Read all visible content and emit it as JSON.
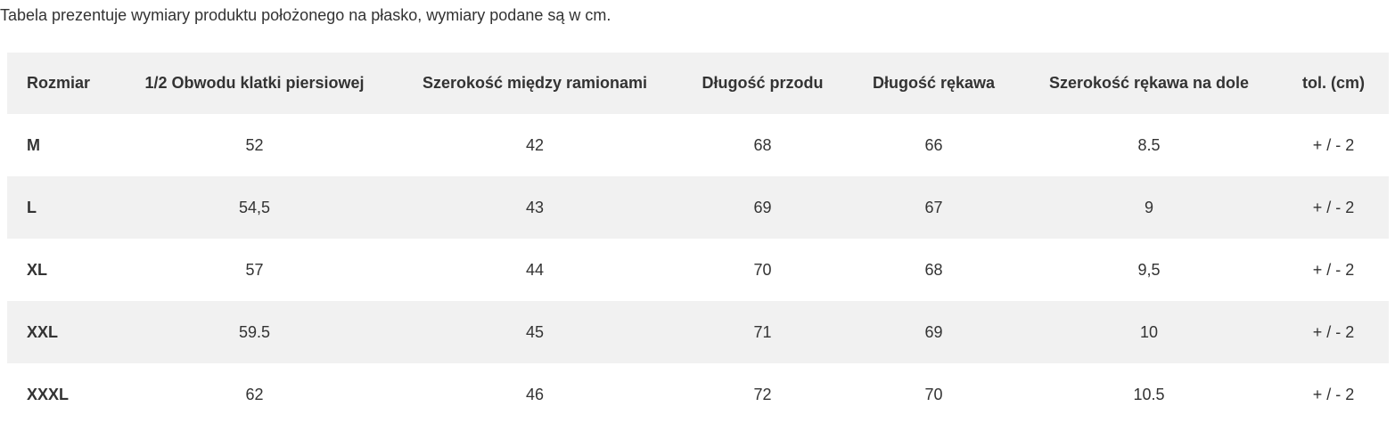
{
  "intro": "Tabela prezentuje wymiary produktu położonego na płasko, wymiary podane są w cm.",
  "table": {
    "headers": [
      "Rozmiar",
      "1/2 Obwodu klatki piersiowej",
      "Szerokość między ramionami",
      "Długość przodu",
      "Długość rękawa",
      "Szerokość rękawa na dole",
      "tol. (cm)"
    ],
    "rows": [
      [
        "M",
        "52",
        "42",
        "68",
        "66",
        "8.5",
        "+ / - 2"
      ],
      [
        "L",
        "54,5",
        "43",
        "69",
        "67",
        "9",
        "+ / - 2"
      ],
      [
        "XL",
        "57",
        "44",
        "70",
        "68",
        "9,5",
        "+ / - 2"
      ],
      [
        "XXL",
        "59.5",
        "45",
        "71",
        "69",
        "10",
        "+ / - 2"
      ],
      [
        "XXXL",
        "62",
        "46",
        "72",
        "70",
        "10.5",
        "+ / - 2"
      ]
    ]
  }
}
